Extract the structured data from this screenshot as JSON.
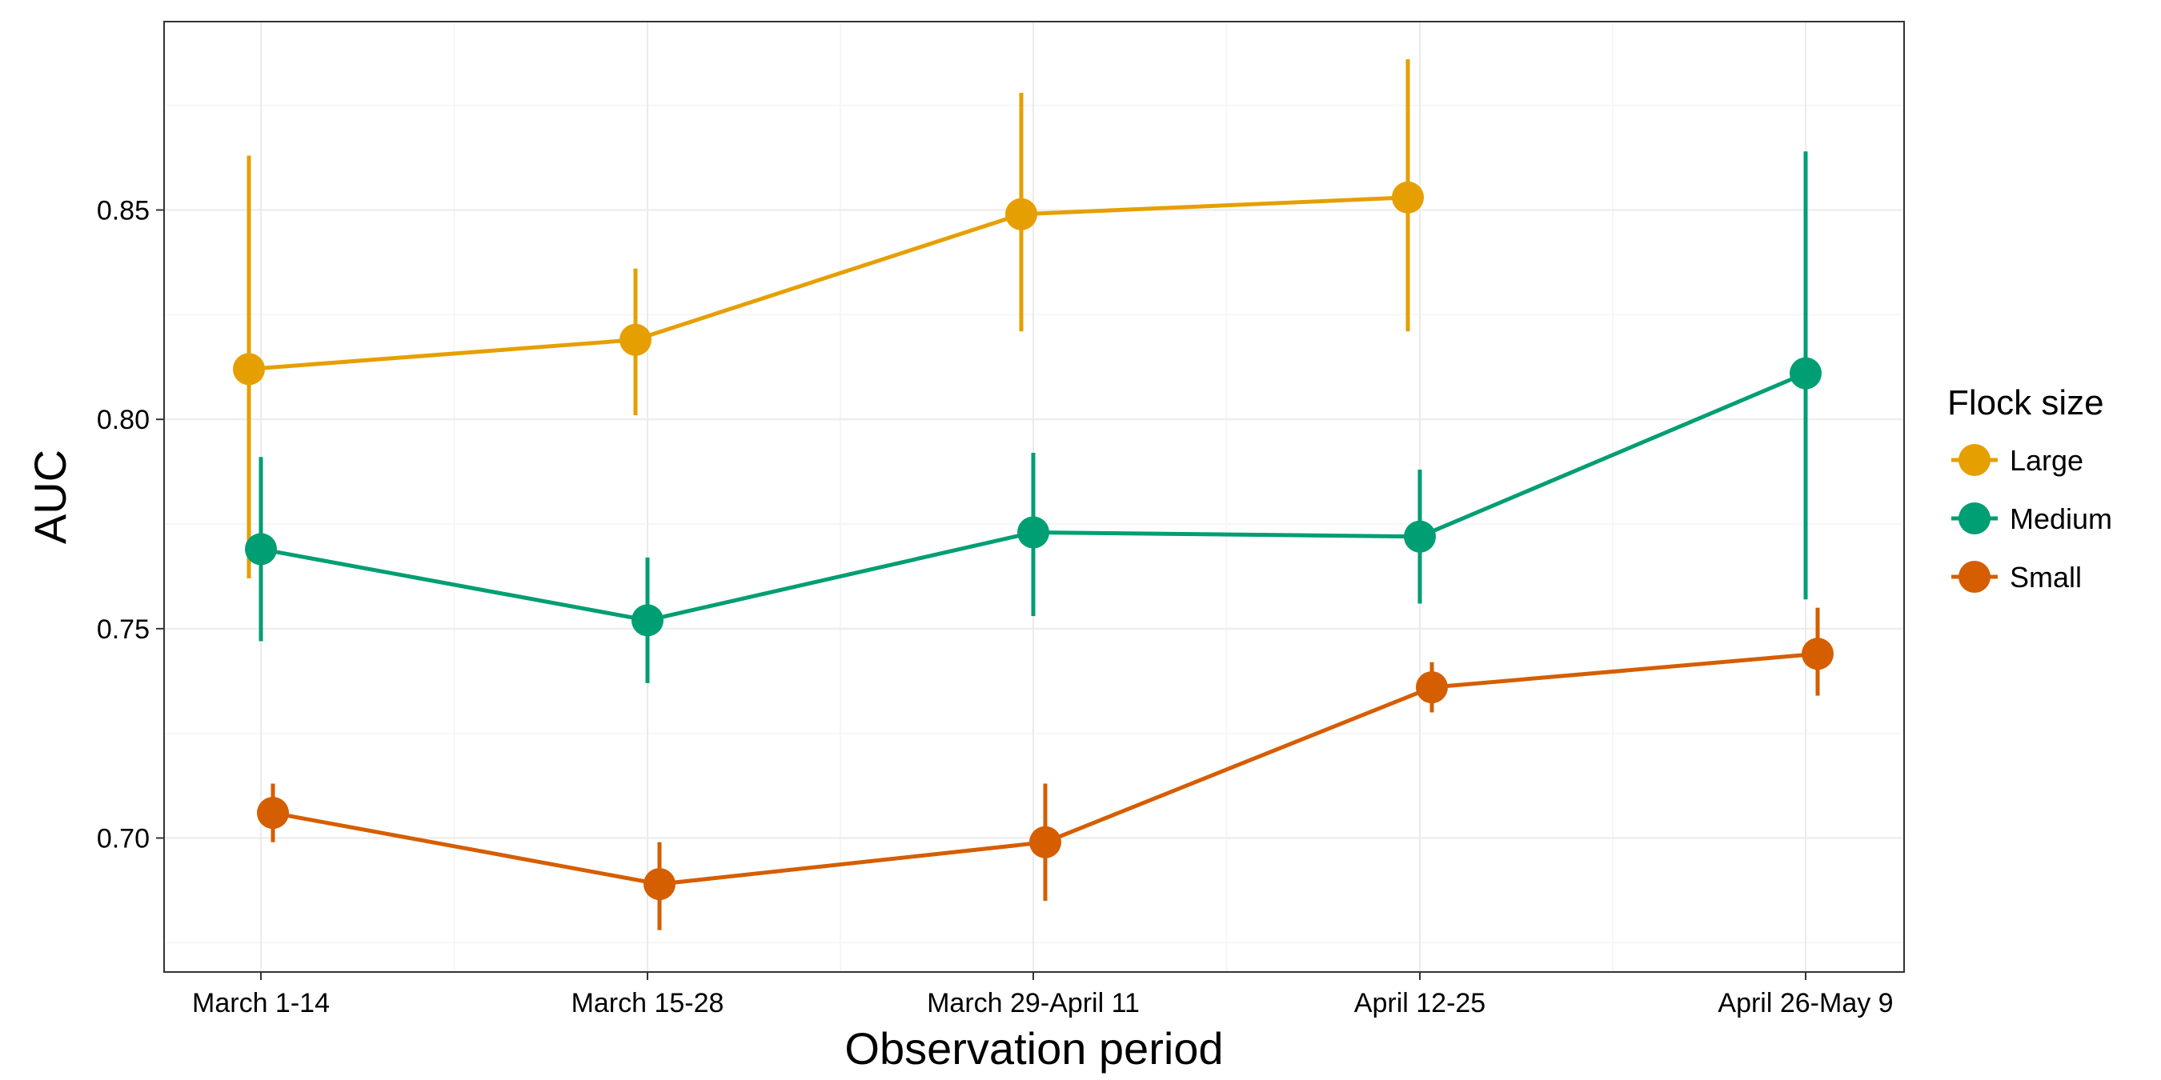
{
  "chart_data": {
    "type": "line",
    "title": "",
    "xlabel": "Observation period",
    "ylabel": "AUC",
    "categories": [
      "March 1-14",
      "March 15-28",
      "March 29-April 11",
      "April 12-25",
      "April 26-May 9"
    ],
    "ylim": [
      0.668,
      0.895
    ],
    "yticks": [
      0.7,
      0.75,
      0.8,
      0.85
    ],
    "ytick_labels": [
      "0.70",
      "0.75",
      "0.80",
      "0.85"
    ],
    "grid": true,
    "legend": {
      "title": "Flock size",
      "position": "right"
    },
    "series": [
      {
        "name": "Large",
        "color": "#E69F00",
        "values": [
          0.812,
          0.819,
          0.849,
          0.853,
          null
        ],
        "error_low": [
          0.762,
          0.801,
          0.821,
          0.821,
          null
        ],
        "error_high": [
          0.863,
          0.836,
          0.878,
          0.886,
          null
        ]
      },
      {
        "name": "Medium",
        "color": "#009E73",
        "values": [
          0.769,
          0.752,
          0.773,
          0.772,
          0.811
        ],
        "error_low": [
          0.747,
          0.737,
          0.753,
          0.756,
          0.757
        ],
        "error_high": [
          0.791,
          0.767,
          0.792,
          0.788,
          0.864
        ]
      },
      {
        "name": "Small",
        "color": "#D55E00",
        "values": [
          0.706,
          0.689,
          0.699,
          0.736,
          0.744
        ],
        "error_low": [
          0.699,
          0.678,
          0.685,
          0.73,
          0.734
        ],
        "error_high": [
          0.713,
          0.699,
          0.713,
          0.742,
          0.755
        ]
      }
    ]
  }
}
